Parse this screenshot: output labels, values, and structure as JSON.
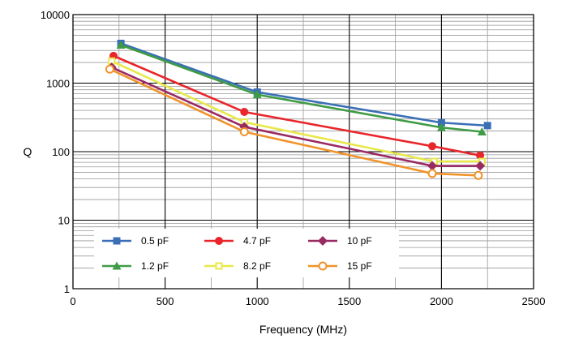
{
  "chart_data": {
    "type": "line",
    "title": "",
    "xlabel": "Frequency (MHz)",
    "ylabel": "Q",
    "xscale": "linear",
    "yscale": "log",
    "xlim": [
      0,
      2500
    ],
    "ylim": [
      1,
      10000
    ],
    "x_ticks": [
      0,
      500,
      1000,
      1500,
      2000,
      2500
    ],
    "x_tick_labels": [
      "0",
      "500",
      "1000",
      "1500",
      "2000",
      "2500"
    ],
    "y_ticks": [
      1,
      10,
      100,
      1000,
      10000
    ],
    "y_tick_labels": [
      "1",
      "10",
      "100",
      "1000",
      "10000"
    ],
    "grid": true,
    "legend_position": "bottom-center",
    "series": [
      {
        "name": "0.5 pF",
        "color": "#3a6fb5",
        "marker": "square",
        "points": [
          [
            260,
            3800
          ],
          [
            1000,
            740
          ],
          [
            2000,
            265
          ],
          [
            2250,
            240
          ]
        ]
      },
      {
        "name": "1.2 pF",
        "color": "#3f9b45",
        "marker": "triangle",
        "points": [
          [
            260,
            3600
          ],
          [
            1000,
            680
          ],
          [
            2000,
            225
          ],
          [
            2220,
            195
          ]
        ]
      },
      {
        "name": "4.7 pF",
        "color": "#e8262b",
        "marker": "circle",
        "points": [
          [
            220,
            2500
          ],
          [
            930,
            380
          ],
          [
            1950,
            120
          ],
          [
            2210,
            88
          ]
        ]
      },
      {
        "name": "8.2 pF",
        "color": "#e8e84a",
        "marker": "open-square",
        "points": [
          [
            210,
            2100
          ],
          [
            930,
            270
          ],
          [
            1960,
            72
          ],
          [
            2220,
            72
          ]
        ]
      },
      {
        "name": "10 pF",
        "color": "#9a2a62",
        "marker": "diamond",
        "points": [
          [
            210,
            1700
          ],
          [
            930,
            230
          ],
          [
            1950,
            62
          ],
          [
            2210,
            62
          ]
        ]
      },
      {
        "name": "15 pF",
        "color": "#f0932a",
        "marker": "open-circle",
        "points": [
          [
            200,
            1600
          ],
          [
            930,
            195
          ],
          [
            1950,
            48
          ],
          [
            2200,
            45
          ]
        ]
      }
    ]
  }
}
